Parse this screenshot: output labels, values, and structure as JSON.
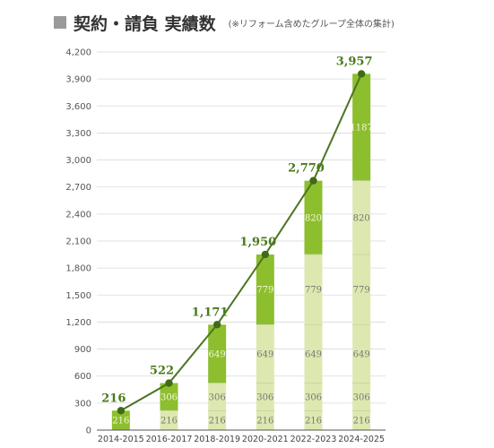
{
  "header": {
    "title": "契約・請負 実績数",
    "subtitle": "(※リフォーム含めたグループ全体の集計)"
  },
  "colors": {
    "top_segment": "#8dbe2d",
    "lower_segment": "#dde8b0",
    "line": "#4c7423",
    "marker": "#3f6a16",
    "total_label": "#4a7a1a",
    "grid": "#d9d9d9"
  },
  "chart_data": {
    "type": "bar",
    "stacked": true,
    "categories": [
      "2014-2015",
      "2016-2017",
      "2018-2019",
      "2020-2021",
      "2022-2023",
      "2024-2025"
    ],
    "stacks": [
      [
        216
      ],
      [
        216,
        306
      ],
      [
        216,
        306,
        649
      ],
      [
        216,
        306,
        649,
        779
      ],
      [
        216,
        306,
        649,
        779,
        820
      ],
      [
        216,
        306,
        649,
        779,
        820,
        1187
      ]
    ],
    "totals": [
      216,
      522,
      1171,
      1950,
      2770,
      3957
    ],
    "total_labels": [
      "216",
      "522",
      "1,171",
      "1,950",
      "2,770",
      "3,957"
    ],
    "line_overlay": true,
    "ylim": [
      0,
      4200
    ],
    "yticks": [
      0,
      300,
      600,
      900,
      1200,
      1500,
      1800,
      2100,
      2400,
      2700,
      3000,
      3300,
      3600,
      3900,
      4200
    ],
    "ytick_labels": [
      "0",
      "300",
      "600",
      "900",
      "1,200",
      "1,500",
      "1,800",
      "2,100",
      "2,400",
      "2,700",
      "3,000",
      "3,300",
      "3,600",
      "3,900",
      "4,200"
    ],
    "grid": true,
    "legend": "none"
  }
}
